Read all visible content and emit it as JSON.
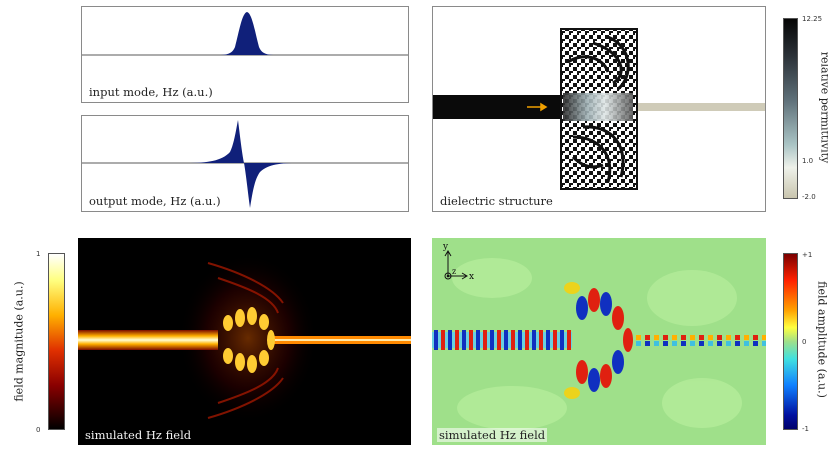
{
  "panels": {
    "input_mode": {
      "label": "input mode, Hz (a.u.)"
    },
    "output_mode": {
      "label": "output mode, Hz (a.u.)"
    },
    "dielectric": {
      "label": "dielectric structure"
    },
    "field_magnitude": {
      "label": "simulated Hz field"
    },
    "field_amplitude": {
      "label": "simulated Hz field"
    }
  },
  "permittivity_colorbar": {
    "title": "relative permittivity",
    "ticks": [
      "12.25",
      "1.0",
      "-2.0"
    ]
  },
  "magnitude_colorbar": {
    "title": "field magnitude (a.u.)",
    "ticks": [
      "1",
      "0"
    ]
  },
  "amplitude_colorbar": {
    "title": "field amplitude (a.u.)",
    "ticks": [
      "+1",
      "0",
      "-1"
    ]
  },
  "axes_glyph": {
    "y": "y",
    "x": "x",
    "z": "z"
  },
  "colors": {
    "mode_fill": "#10207a",
    "waveguide": "#0a0a0a",
    "output_guide": "#cfcbb8",
    "arrow": "#f0a000"
  }
}
